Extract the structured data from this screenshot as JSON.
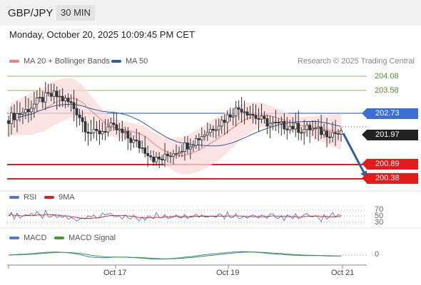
{
  "header": {
    "symbol": "GBP/JPY",
    "timeframe": "30 MIN"
  },
  "timestamp": "Monday, October 20, 2025 10:09:45 PM CET",
  "legend": {
    "ma20": "MA 20 + Bollinger Bands",
    "ma50": "MA 50",
    "credit": "Research © 2025 Trading Central"
  },
  "levels": {
    "r2": "204.08",
    "r1": "203.58",
    "pivot": "202.73",
    "last": "201.97",
    "s1": "200.89",
    "s2": "200.38"
  },
  "colors": {
    "ma20": "#f08080",
    "ma50": "#2e5f9e",
    "pivot": "#3b6fd6",
    "support": "#e31b1b",
    "resistance": "#8bbf5a",
    "last": "#222222",
    "rsi": "#4a7bd4",
    "rsi_ma": "#e31b1b",
    "macd": "#4a7bd4",
    "macd_signal": "#3f9a2a"
  },
  "rsi_panel": {
    "label": "RSI",
    "ma_label": "9MA",
    "levels": [
      "70",
      "50",
      "30"
    ]
  },
  "macd_panel": {
    "label": "MACD",
    "signal_label": "MACD Signal",
    "zero": "0"
  },
  "xaxis": {
    "labels": [
      "Oct 17",
      "Oct 19",
      "Oct 21"
    ]
  },
  "chart_data": {
    "type": "candlestick",
    "instrument": "GBP/JPY",
    "interval": "30 MIN",
    "resistance_levels": [
      204.08,
      203.58
    ],
    "pivot": 202.73,
    "last_price": 201.97,
    "support_levels": [
      200.89,
      200.38
    ],
    "x_tick_labels": [
      "Oct 17",
      "Oct 19",
      "Oct 21"
    ],
    "close_path": [
      202.55,
      202.7,
      202.8,
      203.0,
      203.2,
      203.35,
      203.4,
      203.25,
      203.1,
      202.75,
      202.2,
      202.0,
      202.1,
      202.25,
      202.15,
      201.95,
      201.75,
      201.55,
      201.35,
      201.05,
      201.1,
      201.3,
      201.45,
      201.6,
      201.75,
      201.95,
      202.15,
      202.35,
      202.55,
      202.8,
      202.95,
      202.8,
      202.6,
      202.45,
      202.35,
      202.3,
      202.3,
      202.25,
      202.15,
      202.2,
      202.1,
      202.05,
      202.05,
      201.97
    ],
    "forecast": {
      "direction": "down",
      "target": 200.38
    },
    "rsi": {
      "levels": [
        70,
        50,
        30
      ]
    },
    "macd": {
      "zero": 0
    }
  }
}
